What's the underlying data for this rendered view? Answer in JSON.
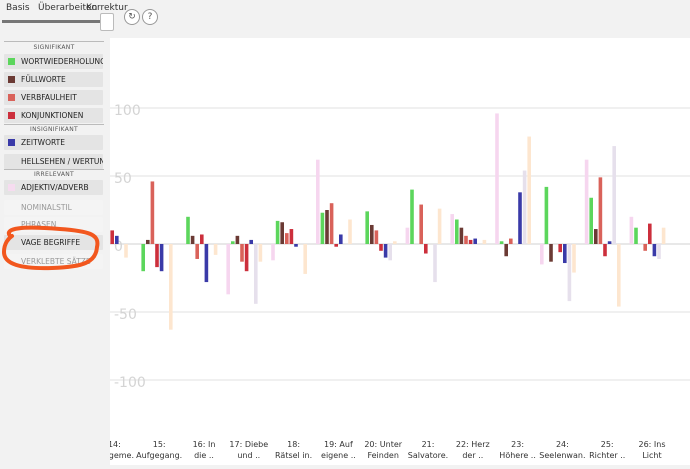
{
  "tabs": [
    "Basis",
    "Überarbeiten",
    "Korrektur"
  ],
  "buttons": {
    "refresh_icon": "refresh-icon",
    "help_label": "?"
  },
  "sidebar": {
    "sections": [
      {
        "title": "SIGNIFIKANT",
        "items": [
          {
            "label": "WORTWIEDERHOLUNG",
            "color": "#5cd65c",
            "faded": false
          },
          {
            "label": "FÜLLWORTE",
            "color": "#6b3a34",
            "faded": false
          },
          {
            "label": "VERBFAULHEIT",
            "color": "#d9625a",
            "faded": false
          },
          {
            "label": "KONJUNKTIONEN",
            "color": "#cc2f3c",
            "faded": false
          }
        ]
      },
      {
        "title": "INSIGNIFIKANT",
        "items": [
          {
            "label": "ZEITWORTE",
            "color": "#3a3aa8",
            "faded": false
          },
          {
            "label": "HELLSEHEN / WERTUNG",
            "color": "",
            "faded": false
          }
        ]
      },
      {
        "title": "IRRELEVANT",
        "items": [
          {
            "label": "ADJEKTIV/ADVERB",
            "color": "#f6dcf0",
            "faded": false
          },
          {
            "label": "NOMINALSTIL",
            "color": "",
            "faded": true
          },
          {
            "label": "PHRASEN",
            "color": "",
            "faded": true
          },
          {
            "label": "VAGE BEGRIFFE",
            "color": "",
            "faded": false
          },
          {
            "label": "VERKLEBTE SÄTZE",
            "color": "",
            "faded": true
          }
        ]
      }
    ]
  },
  "chart_data": {
    "type": "bar",
    "ylim": [
      -100,
      100
    ],
    "yticks": [
      100,
      50,
      0,
      -50,
      -100
    ],
    "grid": true,
    "categories": [
      [
        "14:",
        "eckgeme."
      ],
      [
        "15:",
        "Aufgegang."
      ],
      [
        "16: In",
        "die .."
      ],
      [
        "17: Diebe",
        "und .."
      ],
      [
        "18:",
        "Rätsel in."
      ],
      [
        "19: Auf",
        "eigene .."
      ],
      [
        "20: Unter",
        "Feinden"
      ],
      [
        "21:",
        "Salvatore."
      ],
      [
        "22: Herz",
        "der .."
      ],
      [
        "23:",
        "Höhere .."
      ],
      [
        "24:",
        "Seelenwan."
      ],
      [
        "25:",
        "Richter .."
      ],
      [
        "26: Ins",
        "Licht"
      ]
    ],
    "series": [
      {
        "color": "#f6d6ef",
        "values": [
          22,
          0,
          0,
          -37,
          -12,
          62,
          0,
          12,
          22,
          96,
          -15,
          62,
          20
        ]
      },
      {
        "color": "#5cd65c",
        "values": [
          0,
          -20,
          20,
          2,
          17,
          23,
          24,
          40,
          18,
          2,
          42,
          34,
          12
        ]
      },
      {
        "color": "#6b3a34",
        "values": [
          0,
          3,
          6,
          6,
          16,
          25,
          14,
          0,
          12,
          -9,
          -13,
          11,
          0
        ]
      },
      {
        "color": "#d9625a",
        "values": [
          13,
          46,
          -11,
          -13,
          8,
          30,
          10,
          29,
          6,
          4,
          0,
          49,
          -5
        ]
      },
      {
        "color": "#cc2f3c",
        "values": [
          10,
          -17,
          7,
          -20,
          11,
          -2,
          -5,
          -7,
          3,
          0,
          -6,
          -9,
          15
        ]
      },
      {
        "color": "#3a3aa8",
        "values": [
          6,
          -20,
          -28,
          3,
          -2,
          7,
          -10,
          0,
          4,
          38,
          -14,
          2,
          -9
        ]
      },
      {
        "color": "#e6e0ec",
        "values": [
          0,
          0,
          0,
          -44,
          0,
          0,
          -12,
          -28,
          0,
          54,
          -42,
          72,
          -11
        ]
      },
      {
        "color": "#fde6cf",
        "values": [
          -10,
          -63,
          -8,
          -13,
          -22,
          18,
          2,
          26,
          3,
          79,
          -21,
          -46,
          12
        ]
      }
    ]
  }
}
